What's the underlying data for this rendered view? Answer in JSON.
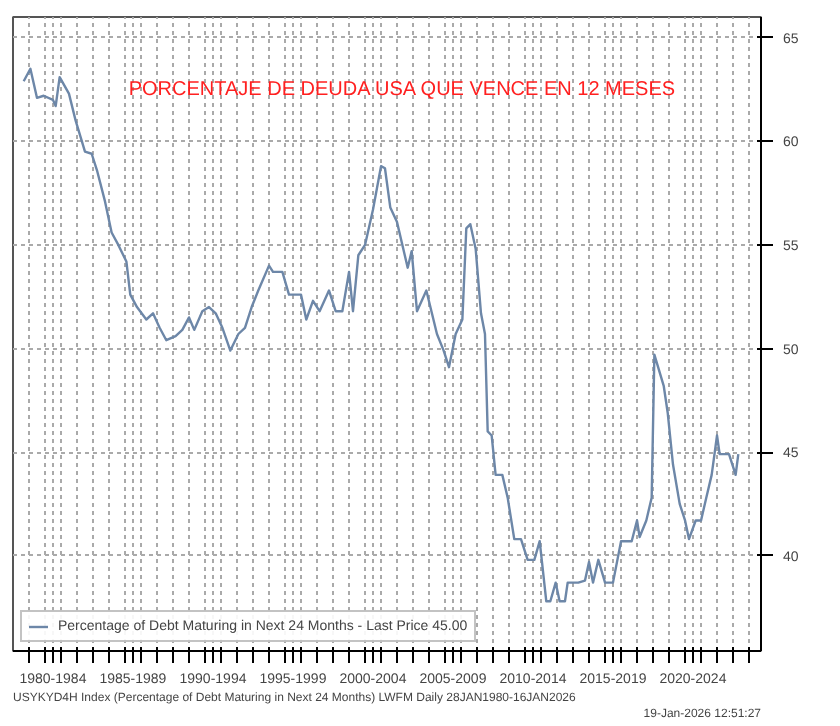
{
  "chart_data": {
    "type": "line",
    "title": "PORCENTAJE DE DEUDA USA QUE VENCE EN 12 MESES",
    "series": [
      {
        "name": "Percentage of Debt Maturing in Next 24 Months - Last Price 45.00",
        "color": "#6d87a8",
        "x": [
          "1980-09",
          "1981-02",
          "1981-07",
          "1981-12",
          "1982-07",
          "1982-09",
          "1982-12",
          "1983-07",
          "1983-12",
          "1984-07",
          "1984-12",
          "1985-04",
          "1985-10",
          "1986-03",
          "1986-08",
          "1987-02",
          "1987-05",
          "1987-10",
          "1988-05",
          "1988-10",
          "1989-03",
          "1989-08",
          "1990-03",
          "1990-08",
          "1991-01",
          "1991-05",
          "1991-11",
          "1992-04",
          "1992-09",
          "1993-02",
          "1993-08",
          "1994-02",
          "1994-07",
          "1994-12",
          "1995-05",
          "1996-01",
          "1996-04",
          "1996-11",
          "1997-04",
          "1998-01",
          "1998-05",
          "1998-10",
          "1999-03",
          "1999-10",
          "2000-03",
          "2000-08",
          "2001-01",
          "2001-04",
          "2001-08",
          "2002-01",
          "2002-07",
          "2003-01",
          "2003-04",
          "2003-08",
          "2004-01",
          "2004-09",
          "2004-12",
          "2005-04",
          "2005-11",
          "2006-07",
          "2006-12",
          "2007-04",
          "2007-09",
          "2008-02",
          "2008-05",
          "2008-08",
          "2008-12",
          "2009-04",
          "2009-07",
          "2009-09",
          "2009-12",
          "2010-03",
          "2010-08",
          "2010-12",
          "2011-05",
          "2011-10",
          "2012-03",
          "2012-08",
          "2012-12",
          "2013-05",
          "2013-08",
          "2013-12",
          "2014-03",
          "2014-07",
          "2014-09",
          "2015-05",
          "2015-10",
          "2016-01",
          "2016-04",
          "2016-08",
          "2017-01",
          "2017-07",
          "2018-01",
          "2018-09",
          "2019-01",
          "2019-03",
          "2019-08",
          "2019-12",
          "2020-02",
          "2020-09",
          "2020-12",
          "2021-04",
          "2021-09",
          "2022-01",
          "2022-04",
          "2022-09",
          "2023-01",
          "2023-05",
          "2023-09",
          "2024-01",
          "2024-03",
          "2024-10",
          "2025-03",
          "2025-05"
        ],
        "values": [
          62.9,
          63.5,
          62.1,
          62.2,
          62.0,
          61.7,
          63.1,
          62.3,
          61.0,
          59.5,
          59.4,
          58.6,
          57.1,
          55.6,
          55.0,
          54.2,
          52.6,
          52.0,
          51.4,
          51.7,
          51.0,
          50.4,
          50.6,
          50.9,
          51.5,
          50.9,
          51.8,
          52.0,
          51.7,
          51.0,
          49.9,
          50.7,
          51.0,
          52.0,
          52.8,
          54.0,
          53.7,
          53.7,
          52.6,
          52.6,
          51.4,
          52.3,
          51.8,
          52.8,
          51.8,
          51.8,
          53.7,
          51.8,
          54.5,
          55.0,
          56.7,
          58.8,
          58.7,
          56.8,
          56.1,
          53.9,
          54.7,
          51.8,
          52.8,
          50.7,
          49.9,
          49.1,
          50.7,
          51.4,
          55.8,
          56.0,
          54.8,
          51.7,
          50.7,
          46.0,
          45.8,
          43.9,
          43.9,
          42.8,
          40.8,
          40.8,
          39.8,
          39.8,
          40.7,
          37.8,
          37.8,
          38.7,
          37.8,
          37.8,
          38.7,
          38.7,
          38.8,
          39.7,
          38.7,
          39.8,
          38.7,
          38.7,
          40.7,
          40.7,
          41.7,
          40.9,
          41.7,
          42.8,
          49.7,
          48.2,
          46.9,
          44.4,
          42.5,
          41.7,
          40.8,
          41.7,
          41.7,
          42.8,
          43.9,
          45.8,
          44.9,
          44.9,
          43.9,
          44.9
        ]
      }
    ],
    "xlim": [
      "1980-01",
      "2026-10"
    ],
    "ylim": [
      35.4,
      66
    ],
    "xticks": [
      {
        "value": "1982-07",
        "label": "1980-1984"
      },
      {
        "value": "1987-07",
        "label": "1985-1989"
      },
      {
        "value": "1992-07",
        "label": "1990-1994"
      },
      {
        "value": "1997-07",
        "label": "1995-1999"
      },
      {
        "value": "2002-07",
        "label": "2000-2004"
      },
      {
        "value": "2007-07",
        "label": "2005-2009"
      },
      {
        "value": "2012-07",
        "label": "2010-2014"
      },
      {
        "value": "2017-07",
        "label": "2015-2019"
      },
      {
        "value": "2022-07",
        "label": "2020-2024"
      },
      {
        "value": "1981",
        "label": null
      },
      {
        "value": "1982",
        "label": null
      },
      {
        "value": "1983",
        "label": null
      },
      {
        "value": "1984",
        "label": null
      },
      {
        "value": "1985",
        "label": null
      },
      {
        "value": "1986",
        "label": null
      },
      {
        "value": "1987",
        "label": null
      },
      {
        "value": "1988",
        "label": null
      },
      {
        "value": "1989",
        "label": null
      },
      {
        "value": "1990",
        "label": null
      },
      {
        "value": "1991",
        "label": null
      },
      {
        "value": "1992",
        "label": null
      },
      {
        "value": "1993",
        "label": null
      },
      {
        "value": "1994",
        "label": null
      },
      {
        "value": "1995",
        "label": null
      },
      {
        "value": "1996",
        "label": null
      },
      {
        "value": "1997",
        "label": null
      },
      {
        "value": "1998",
        "label": null
      },
      {
        "value": "1999",
        "label": null
      },
      {
        "value": "2000",
        "label": null
      },
      {
        "value": "2001",
        "label": null
      },
      {
        "value": "2002",
        "label": null
      },
      {
        "value": "2003",
        "label": null
      },
      {
        "value": "2004",
        "label": null
      },
      {
        "value": "2005",
        "label": null
      },
      {
        "value": "2006",
        "label": null
      },
      {
        "value": "2007",
        "label": null
      },
      {
        "value": "2008",
        "label": null
      },
      {
        "value": "2009",
        "label": null
      },
      {
        "value": "2010",
        "label": null
      },
      {
        "value": "2011",
        "label": null
      },
      {
        "value": "2012",
        "label": null
      },
      {
        "value": "2013",
        "label": null
      },
      {
        "value": "2014",
        "label": null
      },
      {
        "value": "2015",
        "label": null
      },
      {
        "value": "2016",
        "label": null
      },
      {
        "value": "2017",
        "label": null
      },
      {
        "value": "2018",
        "label": null
      },
      {
        "value": "2019",
        "label": null
      },
      {
        "value": "2020",
        "label": null
      },
      {
        "value": "2021",
        "label": null
      },
      {
        "value": "2022",
        "label": null
      },
      {
        "value": "2023",
        "label": null
      },
      {
        "value": "2024",
        "label": null
      },
      {
        "value": "2025",
        "label": null
      },
      {
        "value": "2026",
        "label": null
      }
    ],
    "yticks": [
      40,
      45,
      50,
      55,
      60,
      65
    ],
    "grid": true,
    "legend": "bottom left",
    "marker": "none",
    "line_style": "solid",
    "annotations": [
      "USYKYD4H Index (Percentage of Debt Maturing in Next 24 Months) LWFM Daily 28JAN1980-16JAN2026",
      "19-Jan-2026 12:51:27"
    ]
  }
}
